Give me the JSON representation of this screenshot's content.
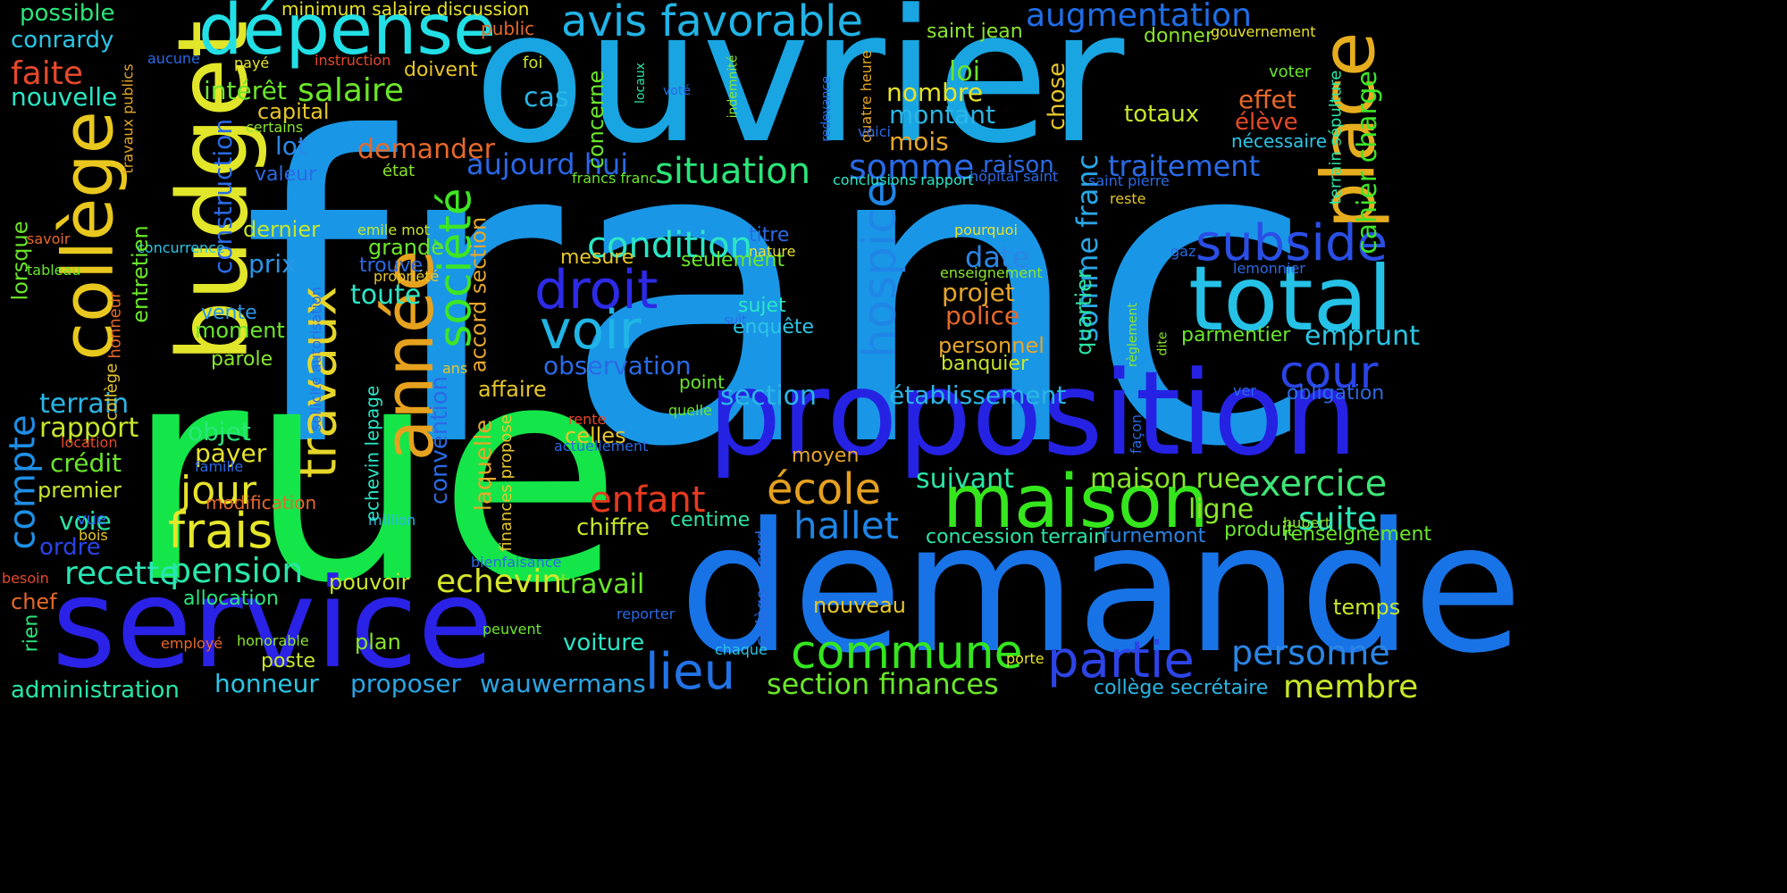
{
  "background_color": "#000000",
  "words": [
    {
      "text": "franc",
      "color": "#1a96e6"
    },
    {
      "text": "rue",
      "color": "#14e64a"
    },
    {
      "text": "ouvrier",
      "color": "#19a5e2"
    },
    {
      "text": "demande",
      "color": "#1873e6"
    },
    {
      "text": "service",
      "color": "#2a22e6"
    },
    {
      "text": "proposition",
      "color": "#2622e4"
    },
    {
      "text": "budget",
      "color": "#e1e62a"
    },
    {
      "text": "dépense",
      "color": "#22dfe6"
    },
    {
      "text": "collège",
      "color": "#e8c81e"
    },
    {
      "text": "place",
      "color": "#e6ad1f"
    },
    {
      "text": "total",
      "color": "#26c1e6"
    },
    {
      "text": "maison",
      "color": "#36e61d"
    },
    {
      "text": "année",
      "color": "#e6a21e"
    },
    {
      "text": "société",
      "color": "#3ee623"
    },
    {
      "text": "avis favorable",
      "color": "#22b4e6"
    },
    {
      "text": "augmentation",
      "color": "#1f6ee6"
    },
    {
      "text": "subside",
      "color": "#2a4fe6"
    },
    {
      "text": "partie",
      "color": "#2d44e6"
    },
    {
      "text": "commune",
      "color": "#35e61f"
    },
    {
      "text": "droit",
      "color": "#2d2ae6"
    },
    {
      "text": "voir",
      "color": "#1fb6e6"
    },
    {
      "text": "hospice",
      "color": "#1f86e6"
    },
    {
      "text": "lieu",
      "color": "#2273e6"
    },
    {
      "text": "travaux",
      "color": "#e6d62a"
    },
    {
      "text": "frais",
      "color": "#e6e62a"
    },
    {
      "text": "compte",
      "color": "#1f8fe6"
    },
    {
      "text": "école",
      "color": "#e6a01f"
    },
    {
      "text": "hallet",
      "color": "#1f86e6"
    },
    {
      "text": "enfant",
      "color": "#e63a1f"
    },
    {
      "text": "exercice",
      "color": "#3ee676"
    },
    {
      "text": "cour",
      "color": "#2a44e6"
    },
    {
      "text": "personne",
      "color": "#2a86e6"
    },
    {
      "text": "membre",
      "color": "#c6e62a"
    },
    {
      "text": "situation",
      "color": "#2ae67a"
    },
    {
      "text": "condition",
      "color": "#2ae6c6"
    },
    {
      "text": "aujourd hui",
      "color": "#2a67e6"
    },
    {
      "text": "pension",
      "color": "#2ae6a6"
    },
    {
      "text": "jour",
      "color": "#e6e22a"
    },
    {
      "text": "somme",
      "color": "#2a6ae6"
    },
    {
      "text": "traitement",
      "color": "#2a6ae6"
    },
    {
      "text": "salaire",
      "color": "#6ae62a"
    },
    {
      "text": "faite",
      "color": "#e6492a"
    },
    {
      "text": "cahier charge",
      "color": "#3ee62a"
    },
    {
      "text": "somme franc",
      "color": "#2aa6e6"
    },
    {
      "text": "emprunt",
      "color": "#2ac6e6"
    },
    {
      "text": "suite",
      "color": "#2ae6b6"
    },
    {
      "text": "echevin",
      "color": "#d6e62a"
    },
    {
      "text": "recette",
      "color": "#2ae6b6"
    },
    {
      "text": "section finances",
      "color": "#6ae62a"
    },
    {
      "text": "administration",
      "color": "#2ae6a6"
    },
    {
      "text": "honneur",
      "color": "#2ac6e6"
    },
    {
      "text": "proposer",
      "color": "#2aa6e6"
    },
    {
      "text": "wauwermans",
      "color": "#2aa6e6"
    },
    {
      "text": "conrardy",
      "color": "#2ac6e6"
    },
    {
      "text": "possible",
      "color": "#2ae67a"
    },
    {
      "text": "nouvelle",
      "color": "#2ae6c6"
    },
    {
      "text": "intérêt",
      "color": "#6ae62a"
    },
    {
      "text": "capital",
      "color": "#e6c62a"
    },
    {
      "text": "lot",
      "color": "#2a86e6"
    },
    {
      "text": "valeur",
      "color": "#2a6ae6"
    },
    {
      "text": "demander",
      "color": "#e6692a"
    },
    {
      "text": "construction",
      "color": "#2a6ae6"
    },
    {
      "text": "prix",
      "color": "#2a96e6"
    },
    {
      "text": "dernier",
      "color": "#c6e62a"
    },
    {
      "text": "vente",
      "color": "#2a96e6"
    },
    {
      "text": "moment",
      "color": "#6ae62a"
    },
    {
      "text": "parole",
      "color": "#8ae62a"
    },
    {
      "text": "objet",
      "color": "#2ae67a"
    },
    {
      "text": "payer",
      "color": "#e6e22a"
    },
    {
      "text": "crédit",
      "color": "#6ae62a"
    },
    {
      "text": "premier",
      "color": "#c6e62a"
    },
    {
      "text": "voie",
      "color": "#2ae6a6"
    },
    {
      "text": "ordre",
      "color": "#2a44e6"
    },
    {
      "text": "terrain",
      "color": "#2ab6e6"
    },
    {
      "text": "rapport",
      "color": "#c6e62a"
    },
    {
      "text": "lorsque",
      "color": "#6ae62a"
    },
    {
      "text": "chef",
      "color": "#e6692a"
    },
    {
      "text": "rien",
      "color": "#2ae67a"
    },
    {
      "text": "loi",
      "color": "#6ae62a"
    },
    {
      "text": "nombre",
      "color": "#e6e22a"
    },
    {
      "text": "montant",
      "color": "#2ab6e6"
    },
    {
      "text": "mois",
      "color": "#e6a62a"
    },
    {
      "text": "chose",
      "color": "#e6c62a"
    },
    {
      "text": "cas",
      "color": "#2ab6e6"
    },
    {
      "text": "concerne",
      "color": "#6ae62a"
    },
    {
      "text": "effet",
      "color": "#e6692a"
    },
    {
      "text": "élève",
      "color": "#e64a2a"
    },
    {
      "text": "nécessaire",
      "color": "#2ac6e6"
    },
    {
      "text": "totaux",
      "color": "#c6e62a"
    },
    {
      "text": "raison",
      "color": "#2a6ae6"
    },
    {
      "text": "titre",
      "color": "#2a6ae6"
    },
    {
      "text": "seulement",
      "color": "#6ae62a"
    },
    {
      "text": "date",
      "color": "#2a86e6"
    },
    {
      "text": "projet",
      "color": "#e6a62a"
    },
    {
      "text": "police",
      "color": "#e6692a"
    },
    {
      "text": "personnel",
      "color": "#e6a62a"
    },
    {
      "text": "banquier",
      "color": "#c6e62a"
    },
    {
      "text": "quartier",
      "color": "#2ae6a6"
    },
    {
      "text": "sujet",
      "color": "#2ae6c6"
    },
    {
      "text": "enquête",
      "color": "#2ac6e6"
    },
    {
      "text": "observation",
      "color": "#2a6ae6"
    },
    {
      "text": "section",
      "color": "#2ab6e6"
    },
    {
      "text": "établissement",
      "color": "#2ab6e6"
    },
    {
      "text": "suivant",
      "color": "#2ae6a6"
    },
    {
      "text": "maison rue",
      "color": "#8ae62a"
    },
    {
      "text": "ligne",
      "color": "#8ae62a"
    },
    {
      "text": "chiffre",
      "color": "#c6e62a"
    },
    {
      "text": "centime",
      "color": "#2ae6a6"
    },
    {
      "text": "travail",
      "color": "#6ae62a"
    },
    {
      "text": "pouvoir",
      "color": "#c6e62a"
    },
    {
      "text": "toute",
      "color": "#2ae6c6"
    },
    {
      "text": "grande",
      "color": "#6ae62a"
    },
    {
      "text": "trouve",
      "color": "#2a6ae6"
    },
    {
      "text": "mesure",
      "color": "#e6c62a"
    },
    {
      "text": "affaire",
      "color": "#e6c62a"
    },
    {
      "text": "laquelle",
      "color": "#e6a62a"
    },
    {
      "text": "convention",
      "color": "#2a6ae6"
    },
    {
      "text": "celles",
      "color": "#e6c62a"
    },
    {
      "text": "accord section",
      "color": "#e6a62a"
    },
    {
      "text": "allocation",
      "color": "#2ae67a"
    },
    {
      "text": "poste",
      "color": "#c6e62a"
    },
    {
      "text": "plan",
      "color": "#8ae62a"
    },
    {
      "text": "voiture",
      "color": "#2ae6c6"
    },
    {
      "text": "nouveau",
      "color": "#e6c62a"
    },
    {
      "text": "temps",
      "color": "#c6e62a"
    },
    {
      "text": "moyen",
      "color": "#e6a62a"
    },
    {
      "text": "produit",
      "color": "#6ae62a"
    },
    {
      "text": "renseignement",
      "color": "#6ae62a"
    },
    {
      "text": "obligation",
      "color": "#2a6ae6"
    },
    {
      "text": "parmentier",
      "color": "#6ae62a"
    },
    {
      "text": "furnemont",
      "color": "#2a86e6"
    },
    {
      "text": "concession terrain",
      "color": "#2ae6a6"
    },
    {
      "text": "collège secrétaire",
      "color": "#2ab6e6"
    },
    {
      "text": "saint jean",
      "color": "#8ae62a"
    },
    {
      "text": "donner",
      "color": "#8ae62a"
    },
    {
      "text": "gouvernement",
      "color": "#e6e22a"
    },
    {
      "text": "voter",
      "color": "#6ae62a"
    },
    {
      "text": "terrain sépulture",
      "color": "#2ae6a6"
    },
    {
      "text": "minimum salaire discussion",
      "color": "#e6e22a"
    },
    {
      "text": "public",
      "color": "#e6692a"
    },
    {
      "text": "instruction",
      "color": "#e6492a"
    },
    {
      "text": "payé",
      "color": "#e6e22a"
    },
    {
      "text": "aucune",
      "color": "#2a6ae6"
    },
    {
      "text": "foi",
      "color": "#c6e62a"
    },
    {
      "text": "doivent",
      "color": "#e6c62a"
    },
    {
      "text": "certains",
      "color": "#8ae62a"
    },
    {
      "text": "travaux publics",
      "color": "#e6a62a"
    },
    {
      "text": "état",
      "color": "#8ae62a"
    },
    {
      "text": "francs franc",
      "color": "#6ae62a"
    },
    {
      "text": "conclusions rapport",
      "color": "#2ae6c6"
    },
    {
      "text": "hôpital saint",
      "color": "#2a6ae6"
    },
    {
      "text": "saint pierre",
      "color": "#2a6ae6"
    },
    {
      "text": "reste",
      "color": "#e6c62a"
    },
    {
      "text": "gaz",
      "color": "#2a6ae6"
    },
    {
      "text": "lemonnier",
      "color": "#2a6ae6"
    },
    {
      "text": "pourquoi",
      "color": "#e6e22a"
    },
    {
      "text": "enseignement",
      "color": "#8ae62a"
    },
    {
      "text": "nature",
      "color": "#e6e22a"
    },
    {
      "text": "propriété",
      "color": "#e6c62a"
    },
    {
      "text": "emile mot",
      "color": "#c6e62a"
    },
    {
      "text": "savoir",
      "color": "#e6692a"
    },
    {
      "text": "tableau",
      "color": "#6ae62a"
    },
    {
      "text": "concurrence",
      "color": "#2ac6e6"
    },
    {
      "text": "entretien",
      "color": "#6ae62a"
    },
    {
      "text": "honneur",
      "color": "#e6692a"
    },
    {
      "text": "collège",
      "color": "#e6c62a"
    },
    {
      "text": "location",
      "color": "#e6492a"
    },
    {
      "text": "famille",
      "color": "#2a6ae6"
    },
    {
      "text": "modification",
      "color": "#e6692a"
    },
    {
      "text": "vue",
      "color": "#2a6ae6"
    },
    {
      "text": "bois",
      "color": "#e6c62a"
    },
    {
      "text": "besoin",
      "color": "#e6492a"
    },
    {
      "text": "employé",
      "color": "#e6692a"
    },
    {
      "text": "honorable",
      "color": "#8ae62a"
    },
    {
      "text": "peuvent",
      "color": "#6ae62a"
    },
    {
      "text": "reporter",
      "color": "#2a6ae6"
    },
    {
      "text": "chaque",
      "color": "#2ac6e6"
    },
    {
      "text": "porte",
      "color": "#e6e22a"
    },
    {
      "text": "ver",
      "color": "#2a6ae6"
    },
    {
      "text": "façon",
      "color": "#2a6ae6"
    },
    {
      "text": "hubert",
      "color": "#8ae62a"
    },
    {
      "text": "rente",
      "color": "#e6492a"
    },
    {
      "text": "actuellement",
      "color": "#2a6ae6"
    },
    {
      "text": "quelle",
      "color": "#6ae62a"
    },
    {
      "text": "point",
      "color": "#6ae62a"
    },
    {
      "text": "bienfaisance",
      "color": "#2a6ae6"
    },
    {
      "text": "million",
      "color": "#2ab6e6"
    },
    {
      "text": "ans",
      "color": "#e6c62a"
    },
    {
      "text": "echevin lepage",
      "color": "#2ae6c6"
    },
    {
      "text": "finances propose",
      "color": "#e6c62a"
    },
    {
      "text": "sollicite autorisation",
      "color": "#2a6ae6"
    },
    {
      "text": "collège accord",
      "color": "#2a6ae6"
    },
    {
      "text": "suit",
      "color": "#2a6ae6"
    },
    {
      "text": "règlement",
      "color": "#8ae62a"
    },
    {
      "text": "dite",
      "color": "#8ae62a"
    },
    {
      "text": "locaux",
      "color": "#2ae6a6"
    },
    {
      "text": "voté",
      "color": "#2a6ae6"
    },
    {
      "text": "indemnité",
      "color": "#8ae62a"
    },
    {
      "text": "redevance",
      "color": "#2a6ae6"
    },
    {
      "text": "quatre heure",
      "color": "#e6a62a"
    },
    {
      "text": "voici",
      "color": "#2a6ae6"
    }
  ]
}
